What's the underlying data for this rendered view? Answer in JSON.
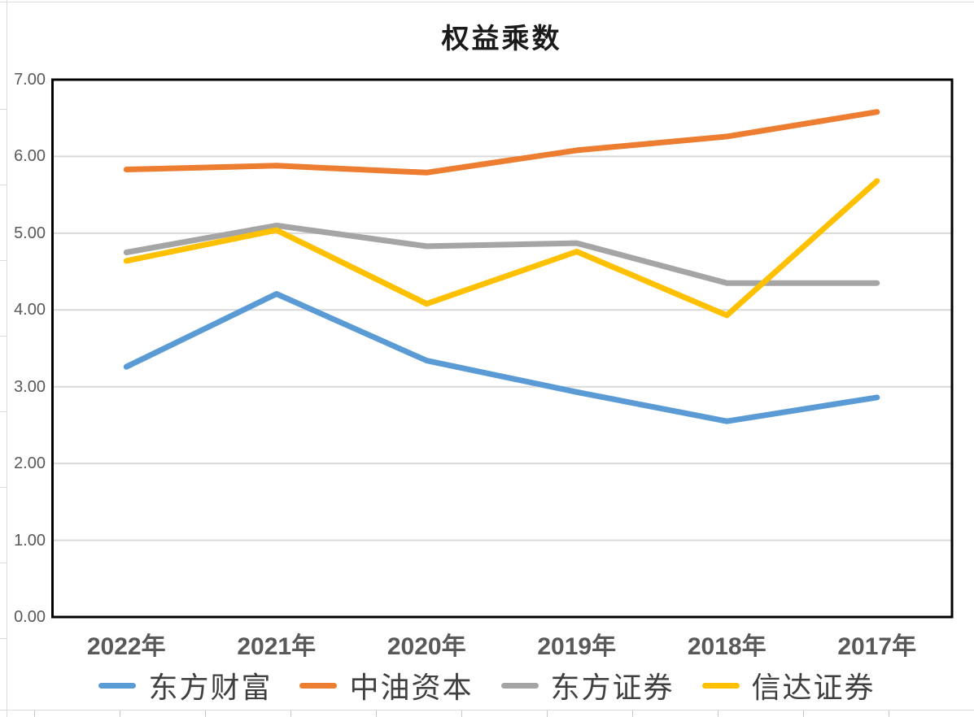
{
  "chart_data": {
    "type": "line",
    "title": "权益乘数",
    "categories": [
      "2022年",
      "2021年",
      "2020年",
      "2019年",
      "2018年",
      "2017年"
    ],
    "series": [
      {
        "name": "东方财富",
        "color": "#5B9BD5",
        "values": [
          3.26,
          4.21,
          3.34,
          2.93,
          2.55,
          2.86
        ]
      },
      {
        "name": "中油资本",
        "color": "#ED7D31",
        "values": [
          5.83,
          5.88,
          5.79,
          6.08,
          6.26,
          6.58
        ]
      },
      {
        "name": "东方证券",
        "color": "#A5A5A5",
        "values": [
          4.75,
          5.1,
          4.83,
          4.87,
          4.35,
          4.35
        ]
      },
      {
        "name": "信达证券",
        "color": "#FFC000",
        "values": [
          4.64,
          5.04,
          4.08,
          4.76,
          3.93,
          5.68
        ]
      }
    ],
    "y_axis": {
      "min": 0,
      "max": 7,
      "step": 1,
      "tick_labels": [
        "0.00",
        "1.00",
        "2.00",
        "3.00",
        "4.00",
        "5.00",
        "6.00",
        "7.00"
      ]
    },
    "x_axis_label": "",
    "ylabel": "",
    "grid": true,
    "legend_position": "bottom"
  },
  "style": {
    "grid_color": "#D9D9D9",
    "plot_border_color": "#000000",
    "axis_label_color": "#595959",
    "legend_text_color": "#404040",
    "title_color": "#1A1A1A",
    "background": "#FFFFFF",
    "sheet_line_color": "#DCDCDC"
  }
}
